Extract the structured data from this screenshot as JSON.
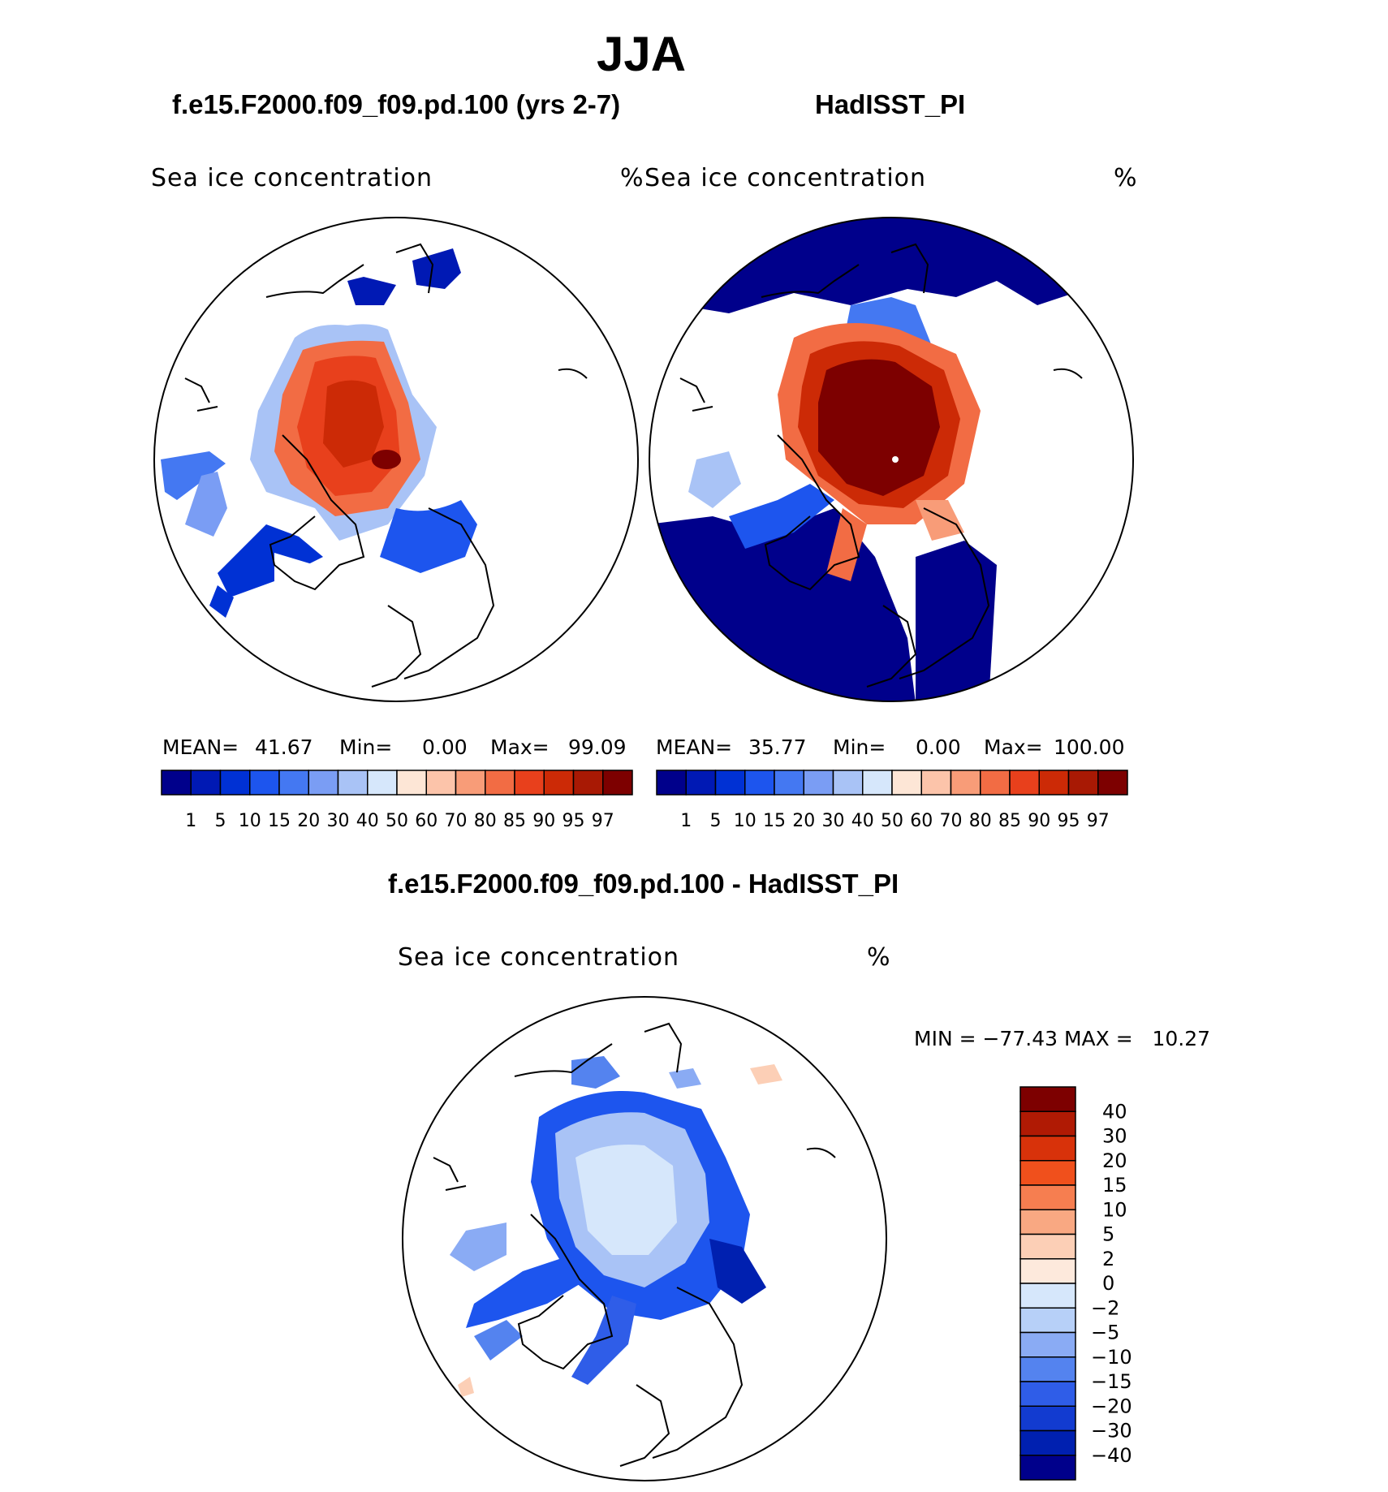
{
  "title": "JJA",
  "variable_label": "Sea ice concentration",
  "units": "%",
  "panels": [
    {
      "id": "model",
      "title": "f.e15.F2000.f09_f09.pd.100 (yrs 2-7)",
      "stats": {
        "mean_label": "MEAN=",
        "mean": "41.67",
        "min_label": "Min=",
        "min": "0.00",
        "max_label": "Max=",
        "max": "99.09"
      }
    },
    {
      "id": "obs",
      "title": "HadISST_PI",
      "stats": {
        "mean_label": "MEAN=",
        "mean": "35.77",
        "min_label": "Min=",
        "min": "0.00",
        "max_label": "Max=",
        "max": "100.00"
      }
    },
    {
      "id": "diff",
      "title": "f.e15.F2000.f09_f09.pd.100 - HadISST_PI",
      "stats_text": "MIN = −77.43 MAX =   10.27"
    }
  ],
  "chart_data": {
    "type": "heatmap",
    "projection": "north polar stereographic",
    "abs_levels": [
      "1",
      "5",
      "10",
      "15",
      "20",
      "30",
      "40",
      "50",
      "60",
      "70",
      "80",
      "85",
      "90",
      "95",
      "97"
    ],
    "abs_colors": [
      "#00008b",
      "#0019b4",
      "#0031d4",
      "#1d55ee",
      "#4478f2",
      "#7a9df4",
      "#a9c3f6",
      "#d6e7fb",
      "#fde6d6",
      "#fcc4aa",
      "#f89c78",
      "#f26c44",
      "#e8401c",
      "#cc2a06",
      "#a81904",
      "#7d0000"
    ],
    "diff_levels": [
      "40",
      "30",
      "20",
      "15",
      "10",
      "5",
      "2",
      "0",
      "−2",
      "−5",
      "−10",
      "−15",
      "−20",
      "−30",
      "−40"
    ],
    "diff_colors": [
      "#7d0000",
      "#b01a04",
      "#d8320a",
      "#f0501c",
      "#f67e50",
      "#f9a882",
      "#fccfb6",
      "#fde9dc",
      "#d6e7fb",
      "#b7d0f8",
      "#8aabf4",
      "#5483ef",
      "#2f5de8",
      "#123bd0",
      "#0020b0",
      "#00008b"
    ]
  }
}
